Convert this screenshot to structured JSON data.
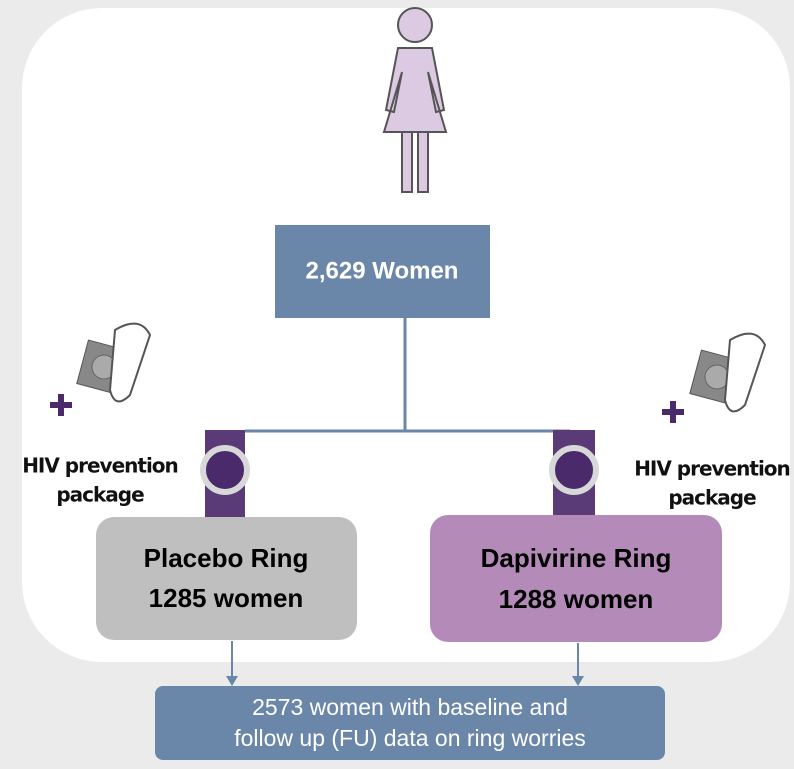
{
  "top": {
    "label": "2,629 Women"
  },
  "arms": [
    {
      "package": [
        "HIV prevention",
        "package"
      ],
      "name": "Placebo Ring",
      "count": "1285 women"
    },
    {
      "package": [
        "HIV prevention",
        "package"
      ],
      "name": "Dapivirine Ring",
      "count": "1288 women"
    }
  ],
  "outcome": {
    "lines": [
      "2573 women with baseline and",
      "follow up (FU) data on ring worries"
    ]
  }
}
